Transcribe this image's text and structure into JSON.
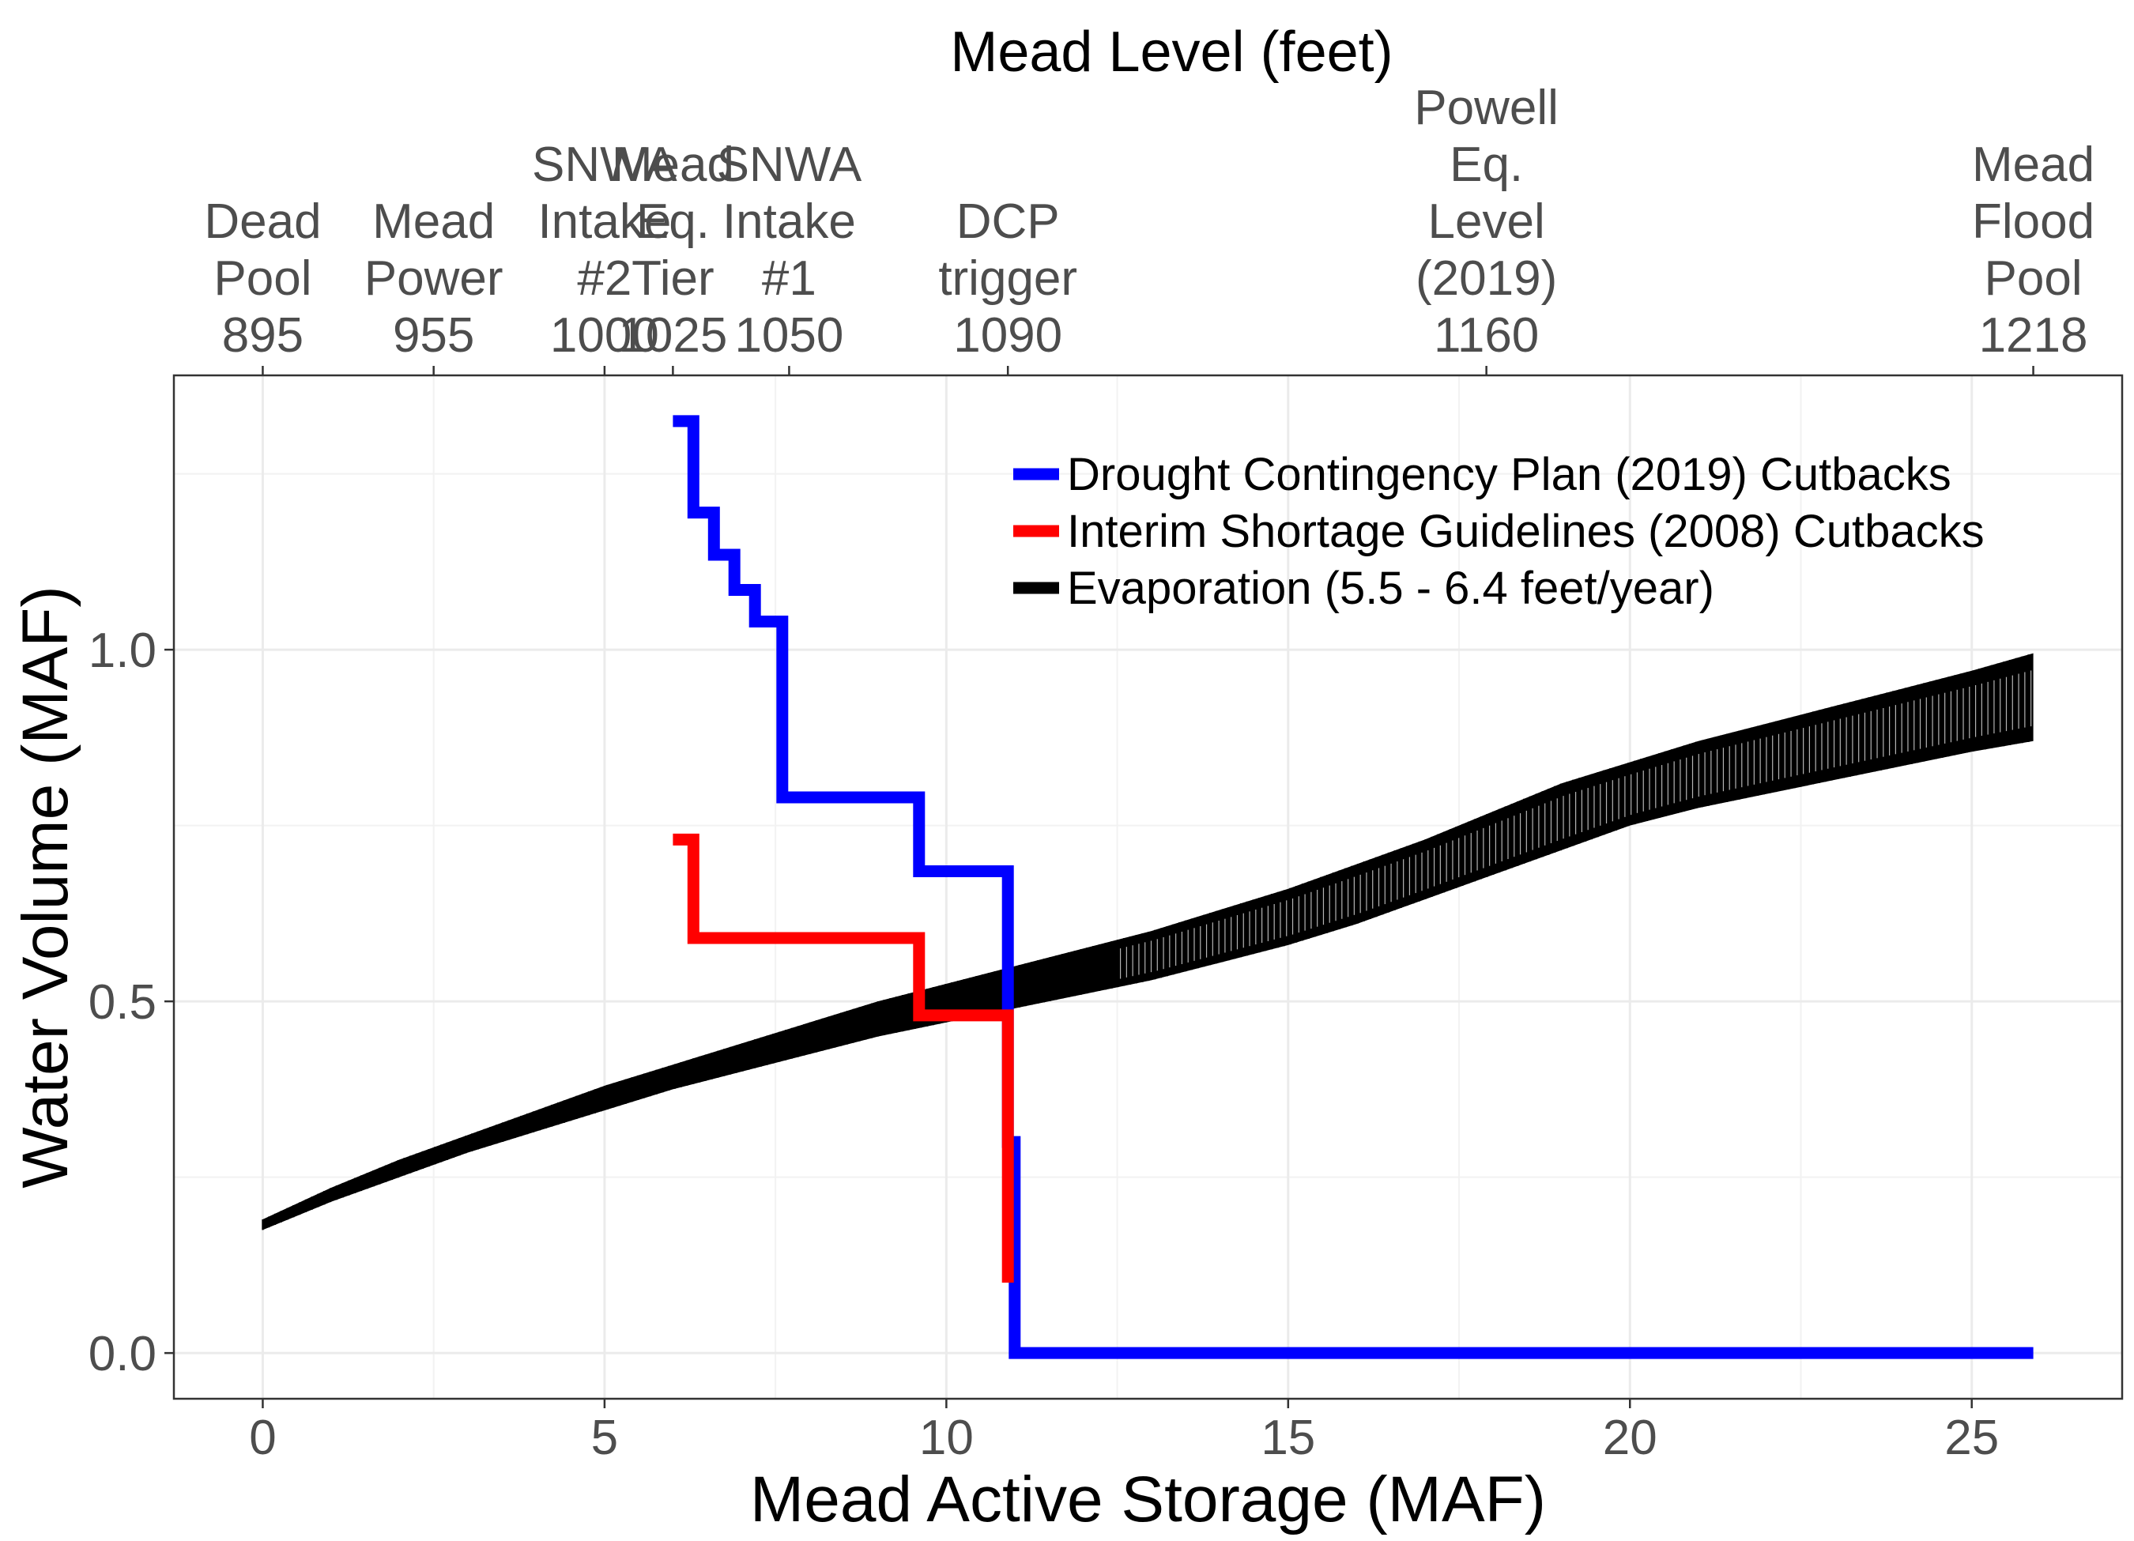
{
  "chart_data": {
    "type": "line",
    "title": "Mead Level (feet)",
    "xlabel": "Mead Active Storage (MAF)",
    "ylabel": "Water Volume (MAF)",
    "xlim": [
      -1.3,
      27.2
    ],
    "ylim": [
      -0.065,
      1.39
    ],
    "x_ticks": [
      0,
      5,
      10,
      15,
      20,
      25
    ],
    "y_ticks": [
      0.0,
      0.5,
      1.0
    ],
    "y_tick_labels": [
      "0.0",
      "0.5",
      "1.0"
    ],
    "grid": true,
    "legend_position": "top-right",
    "top_axis": {
      "ticks": [
        {
          "x": 0.0,
          "level": "895",
          "label": [
            "Dead",
            "Pool"
          ]
        },
        {
          "x": 2.5,
          "level": "955",
          "label": [
            "Mead",
            "Power"
          ]
        },
        {
          "x": 5.0,
          "level": "1000",
          "label": [
            "SNWA",
            "Intake",
            "#2"
          ]
        },
        {
          "x": 6.0,
          "level": "1025",
          "label": [
            "Mead",
            "Eq.",
            "Tier"
          ]
        },
        {
          "x": 7.7,
          "level": "1050",
          "label": [
            "SNWA",
            "Intake",
            "#1"
          ]
        },
        {
          "x": 10.9,
          "level": "1090",
          "label": [
            "DCP",
            "trigger"
          ]
        },
        {
          "x": 17.9,
          "level": "1160",
          "label": [
            "Powell",
            "Eq.",
            "Level",
            "(2019)"
          ]
        },
        {
          "x": 25.9,
          "level": "1218",
          "label": [
            "Mead",
            "Flood",
            "Pool"
          ]
        }
      ]
    },
    "series": [
      {
        "name": "Drought Contingency Plan (2019) Cutbacks",
        "color": "#0000ff",
        "x": [
          6.0,
          6.3,
          6.3,
          6.6,
          6.6,
          6.9,
          6.9,
          7.2,
          7.2,
          7.6,
          7.6,
          9.6,
          9.6,
          10.9,
          10.9,
          11.0,
          11.0,
          25.9
        ],
        "y": [
          1.325,
          1.325,
          1.195,
          1.195,
          1.135,
          1.135,
          1.085,
          1.085,
          1.04,
          1.04,
          0.79,
          0.79,
          0.685,
          0.685,
          0.3,
          0.3,
          0.0,
          0.0
        ]
      },
      {
        "name": "Interim Shortage Guidelines (2008) Cutbacks",
        "color": "#ff0000",
        "x": [
          6.0,
          6.3,
          6.3,
          9.6,
          9.6,
          10.9,
          10.9
        ],
        "y": [
          0.73,
          0.73,
          0.59,
          0.59,
          0.48,
          0.48,
          0.1
        ]
      },
      {
        "name": "Evaporation (5.5 - 6.4 feet/year)",
        "color": "#000000",
        "x": [
          0,
          1,
          2,
          3,
          4,
          5,
          6,
          7,
          8,
          9,
          10,
          11,
          12,
          13,
          14,
          15,
          16,
          17,
          18,
          19,
          20,
          21,
          22,
          23,
          24,
          25,
          25.9
        ],
        "y_low": [
          0.175,
          0.215,
          0.25,
          0.285,
          0.315,
          0.345,
          0.375,
          0.4,
          0.425,
          0.45,
          0.47,
          0.49,
          0.51,
          0.53,
          0.555,
          0.58,
          0.61,
          0.645,
          0.68,
          0.715,
          0.75,
          0.775,
          0.795,
          0.815,
          0.835,
          0.855,
          0.87
        ],
        "y_high": [
          0.19,
          0.235,
          0.275,
          0.31,
          0.345,
          0.38,
          0.41,
          0.44,
          0.47,
          0.5,
          0.525,
          0.55,
          0.575,
          0.6,
          0.63,
          0.66,
          0.695,
          0.73,
          0.77,
          0.81,
          0.84,
          0.87,
          0.895,
          0.92,
          0.945,
          0.97,
          0.995
        ]
      }
    ]
  }
}
